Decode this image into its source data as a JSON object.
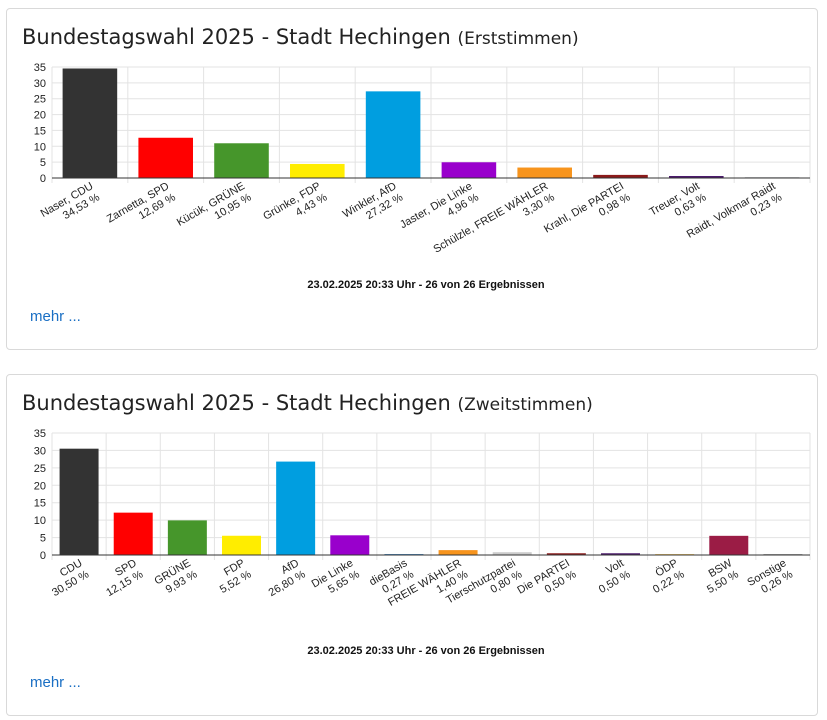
{
  "cards": [
    {
      "title": "Bundestagswahl 2025 - Stadt Hechingen",
      "subtitle": "(Erststimmen)",
      "more_label": "mehr ...",
      "chart_data": {
        "type": "bar",
        "categories": [
          "Naser, CDU",
          "Zarnetta, SPD",
          "Kücük, GRÜNE",
          "Grünke, FDP",
          "Winkler, AfD",
          "Jaster, Die Linke",
          "Schülzle, FREIE WÄHLER",
          "Krahl, Die PARTEI",
          "Treuer, Volt",
          "Raidt, Volkmar Raidt"
        ],
        "value_labels": [
          "34,53 %",
          "12,69 %",
          "10,95 %",
          "4,43 %",
          "27,32 %",
          "4,96 %",
          "3,30 %",
          "0,98 %",
          "0,63 %",
          "0,23 %"
        ],
        "values": [
          34.53,
          12.69,
          10.95,
          4.43,
          27.32,
          4.96,
          3.3,
          0.98,
          0.63,
          0.23
        ],
        "colors": [
          "#333333",
          "#ff0000",
          "#46962b",
          "#ffed00",
          "#009ee0",
          "#9900cc",
          "#f7941d",
          "#8b1a1a",
          "#4b1a6b",
          "#9aa0a6"
        ],
        "ylim": [
          0,
          35
        ],
        "yticks": [
          0,
          5,
          10,
          15,
          20,
          25,
          30,
          35
        ],
        "grid": true,
        "footer": "23.02.2025 20:33 Uhr - 26 von 26 Ergebnissen"
      }
    },
    {
      "title": "Bundestagswahl 2025 - Stadt Hechingen",
      "subtitle": "(Zweitstimmen)",
      "more_label": "mehr ...",
      "chart_data": {
        "type": "bar",
        "categories": [
          "CDU",
          "SPD",
          "GRÜNE",
          "FDP",
          "AfD",
          "Die Linke",
          "dieBasis",
          "FREIE WÄHLER",
          "Tierschutzpartei",
          "Die PARTEI",
          "Volt",
          "ÖDP",
          "BSW",
          "Sonstige"
        ],
        "value_labels": [
          "30,50 %",
          "12,15 %",
          "9,93 %",
          "5,52 %",
          "26,80 %",
          "5,65 %",
          "0,27 %",
          "1,40 %",
          "0,80 %",
          "0,50 %",
          "0,50 %",
          "0,22 %",
          "5,50 %",
          "0,26 %"
        ],
        "values": [
          30.5,
          12.15,
          9.93,
          5.52,
          26.8,
          5.65,
          0.27,
          1.4,
          0.8,
          0.5,
          0.5,
          0.22,
          5.5,
          0.26
        ],
        "colors": [
          "#333333",
          "#ff0000",
          "#46962b",
          "#ffed00",
          "#009ee0",
          "#9900cc",
          "#3f86c4",
          "#f7941d",
          "#cccccc",
          "#8b1a1a",
          "#4b1a6b",
          "#f1a600",
          "#9b1c45",
          "#999999"
        ],
        "ylim": [
          0,
          35
        ],
        "yticks": [
          0,
          5,
          10,
          15,
          20,
          25,
          30,
          35
        ],
        "grid": true,
        "footer": "23.02.2025 20:33 Uhr - 26 von 26 Ergebnissen"
      }
    }
  ]
}
